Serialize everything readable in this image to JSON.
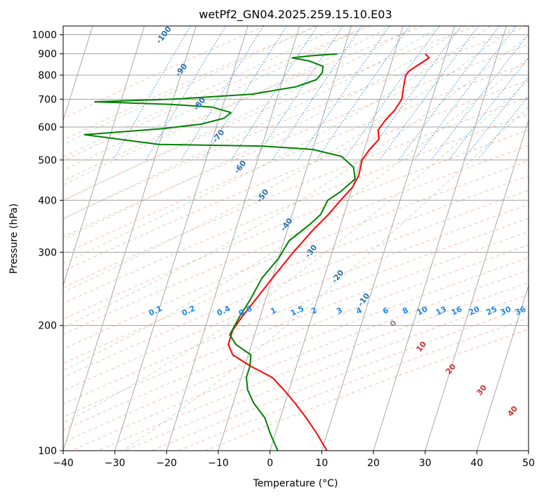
{
  "chart_data": {
    "type": "line",
    "title": "wetPf2_GN04.2025.259.15.10.E03",
    "xlabel": "Temperature (°C)",
    "ylabel": "Pressure (hPa)",
    "xlim": [
      -40,
      50
    ],
    "ylim": [
      1050,
      100
    ],
    "y_scale": "log",
    "x_ticks": [
      -40,
      -30,
      -20,
      -10,
      0,
      10,
      20,
      30,
      40,
      50
    ],
    "y_ticks": [
      100,
      200,
      300,
      400,
      500,
      600,
      700,
      800,
      900,
      1000
    ],
    "grid": true,
    "background_lines": {
      "isotherm_labels": [
        "-100",
        "-90",
        "-80",
        "-70",
        "-60",
        "-50",
        "-40",
        "-30",
        "-20",
        "-10",
        "0",
        "10",
        "20",
        "30",
        "40"
      ],
      "mixing_ratio_labels": [
        "0.1",
        "0.2",
        "0.4",
        "0.6",
        "1",
        "1.5",
        "2",
        "3",
        "4",
        "6",
        "8",
        "10",
        "13",
        "16",
        "20",
        "25",
        "30",
        "36"
      ]
    },
    "series": [
      {
        "color": "#ff0000",
        "points": [
          [
            6.0,
            900
          ],
          [
            7.0,
            880
          ],
          [
            6.0,
            860
          ],
          [
            5.0,
            840
          ],
          [
            4.0,
            820
          ],
          [
            3.5,
            800
          ],
          [
            3.8,
            750
          ],
          [
            4.2,
            700
          ],
          [
            3.5,
            660
          ],
          [
            2.2,
            620
          ],
          [
            1.5,
            590
          ],
          [
            2.2,
            560
          ],
          [
            1.0,
            530
          ],
          [
            0.2,
            500
          ],
          [
            0.5,
            460
          ],
          [
            0.0,
            430
          ],
          [
            -1.5,
            400
          ],
          [
            -3.0,
            370
          ],
          [
            -5.0,
            340
          ],
          [
            -7.5,
            300
          ],
          [
            -10.0,
            260
          ],
          [
            -12.0,
            230
          ],
          [
            -13.5,
            210
          ],
          [
            -14.5,
            195
          ],
          [
            -14.5,
            180
          ],
          [
            -13.0,
            170
          ],
          [
            -9.0,
            160
          ],
          [
            -4.0,
            150
          ],
          [
            -1.0,
            140
          ],
          [
            2.0,
            130
          ],
          [
            5.0,
            120
          ],
          [
            8.0,
            110
          ],
          [
            11.0,
            100
          ]
        ]
      },
      {
        "color": "#008000",
        "points": [
          [
            -11.0,
            900
          ],
          [
            -16.0,
            890
          ],
          [
            -19.5,
            880
          ],
          [
            -16.0,
            865
          ],
          [
            -13.0,
            840
          ],
          [
            -12.8,
            810
          ],
          [
            -13.5,
            780
          ],
          [
            -17.0,
            750
          ],
          [
            -25.0,
            720
          ],
          [
            -40.0,
            700
          ],
          [
            -55.0,
            690
          ],
          [
            -40.0,
            680
          ],
          [
            -32.0,
            670
          ],
          [
            -28.0,
            650
          ],
          [
            -29.0,
            630
          ],
          [
            -33.0,
            610
          ],
          [
            -40.0,
            595
          ],
          [
            -55.0,
            575
          ],
          [
            -40.0,
            545
          ],
          [
            -20.0,
            540
          ],
          [
            -10.0,
            530
          ],
          [
            -4.0,
            510
          ],
          [
            -1.0,
            480
          ],
          [
            0.0,
            450
          ],
          [
            -2.0,
            420
          ],
          [
            -4.0,
            400
          ],
          [
            -4.5,
            370
          ],
          [
            -6.0,
            350
          ],
          [
            -9.0,
            320
          ],
          [
            -10.0,
            290
          ],
          [
            -12.0,
            260
          ],
          [
            -13.0,
            230
          ],
          [
            -14.0,
            210
          ],
          [
            -14.8,
            190
          ],
          [
            -13.0,
            180
          ],
          [
            -9.5,
            170
          ],
          [
            -9.0,
            160
          ],
          [
            -9.0,
            150
          ],
          [
            -8.0,
            140
          ],
          [
            -6.0,
            130
          ],
          [
            -3.0,
            120
          ],
          [
            -1.0,
            110
          ],
          [
            1.5,
            100
          ]
        ]
      }
    ]
  }
}
